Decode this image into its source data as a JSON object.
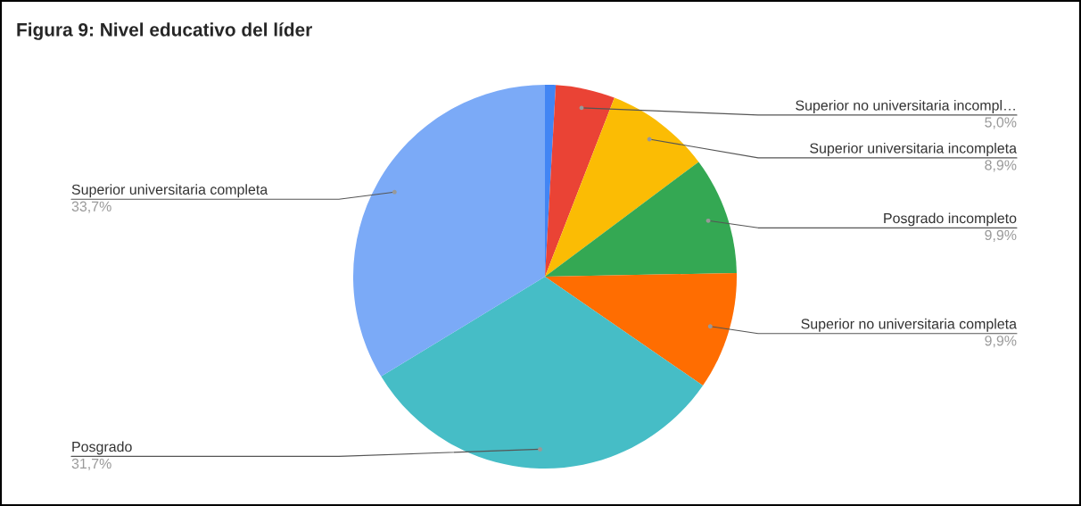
{
  "chart_data": {
    "type": "pie",
    "title": "Figura 9: Nivel educativo del líder",
    "categories": [
      null,
      "Superior no universitaria incompl…",
      "Superior universitaria incompleta",
      "Posgrado incompleto",
      "Superior no universitaria completa",
      "Posgrado",
      "Superior universitaria completa"
    ],
    "values": [
      0.9,
      5.0,
      8.9,
      9.9,
      9.9,
      31.7,
      33.7
    ],
    "value_labels": [
      null,
      "5,0%",
      "8,9%",
      "9,9%",
      "9,9%",
      "31,7%",
      "33,7%"
    ],
    "colors": [
      "#4285f4",
      "#ea4335",
      "#fbbc04",
      "#34a853",
      "#ff6d01",
      "#46bdc6",
      "#7baaf7"
    ]
  }
}
